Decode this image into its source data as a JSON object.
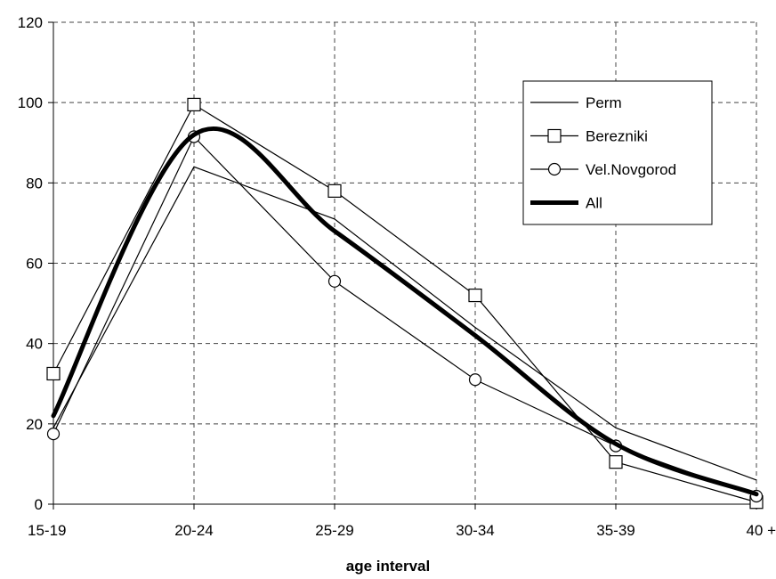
{
  "chart_data": {
    "type": "line",
    "categories": [
      "15-19",
      "20-24",
      "25-29",
      "30-34",
      "35-39",
      "40 +"
    ],
    "xlabel": "age interval",
    "ylabel": "",
    "ylim": [
      0,
      120
    ],
    "yticks": [
      0,
      20,
      40,
      60,
      80,
      100,
      120
    ],
    "grid": true,
    "legend_position": "right",
    "series": [
      {
        "name": "Perm",
        "values": [
          19,
          84,
          71,
          44,
          19,
          6
        ],
        "marker": "none",
        "style": "thin"
      },
      {
        "name": "Berezniki",
        "values": [
          32.5,
          99.5,
          78,
          52,
          10.5,
          0.5
        ],
        "marker": "square",
        "style": "thin"
      },
      {
        "name": "Vel.Novgorod",
        "values": [
          17.5,
          91.5,
          55.5,
          31,
          14.5,
          2
        ],
        "marker": "circle",
        "style": "thin"
      },
      {
        "name": "All",
        "values": [
          22,
          92,
          68,
          42,
          15,
          2.5
        ],
        "marker": "none",
        "style": "thick"
      }
    ]
  }
}
